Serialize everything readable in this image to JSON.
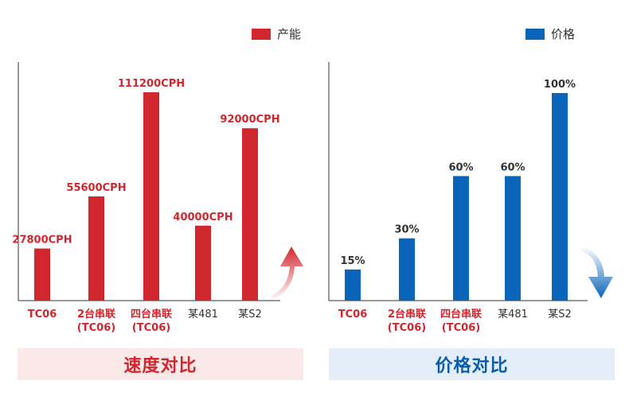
{
  "chart_data": [
    {
      "type": "bar",
      "legend": "产能",
      "color": "#d0262d",
      "categories": [
        [
          "TC06"
        ],
        [
          "2台串联",
          "(TC06)"
        ],
        [
          "四台串联",
          "(TC06)"
        ],
        [
          "某481"
        ],
        [
          "某S2"
        ]
      ],
      "values": [
        27800,
        55600,
        111200,
        40000,
        92000
      ],
      "labels": [
        "27800CPH",
        "55600CPH",
        "111200CPH",
        "40000CPH",
        "92000CPH"
      ],
      "ylim": [
        0,
        115000
      ],
      "grid": false,
      "trend": "up"
    },
    {
      "type": "bar",
      "legend": "价格",
      "color": "#0a64b7",
      "categories": [
        [
          "TC06"
        ],
        [
          "2台串联",
          "(TC06)"
        ],
        [
          "四台串联",
          "(TC06)"
        ],
        [
          "某481"
        ],
        [
          "某S2"
        ]
      ],
      "values": [
        15,
        30,
        60,
        60,
        100
      ],
      "labels": [
        "15%",
        "30%",
        "60%",
        "60%",
        "100%"
      ],
      "ylim": [
        0,
        104
      ],
      "grid": false,
      "trend": "down"
    }
  ],
  "banners": {
    "speed": "速度对比",
    "price": "价格对比"
  }
}
